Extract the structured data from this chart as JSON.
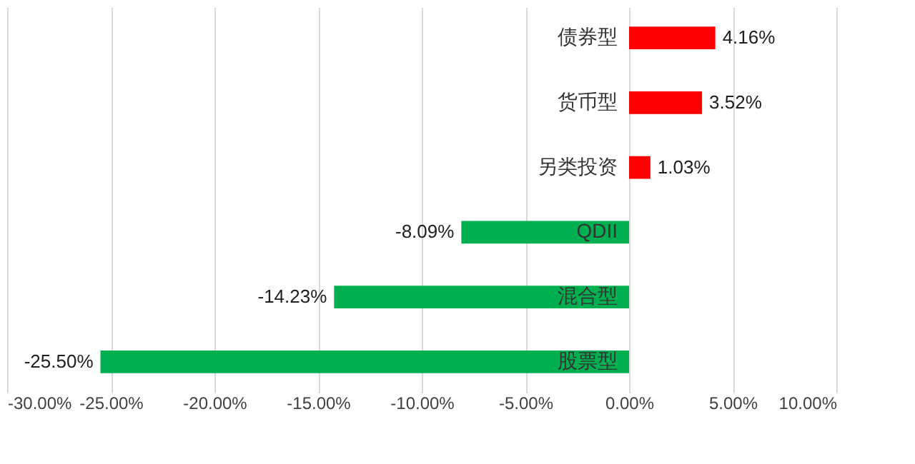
{
  "chart_data": {
    "type": "bar",
    "orientation": "horizontal",
    "categories": [
      "债券型",
      "货币型",
      "另类投资",
      "QDII",
      "混合型",
      "股票型"
    ],
    "values": [
      4.16,
      3.52,
      1.03,
      -8.09,
      -14.23,
      -25.5
    ],
    "colors": [
      "#ff0000",
      "#ff0000",
      "#ff0000",
      "#00b050",
      "#00b050",
      "#00b050"
    ],
    "value_labels": [
      "4.16%",
      "3.52%",
      "1.03%",
      "-8.09%",
      "-14.23%",
      "-25.50%"
    ],
    "xlim": [
      -30,
      10
    ],
    "xticks": [
      {
        "value": -30,
        "label": "-30.00%"
      },
      {
        "value": -25,
        "label": "-25.00%"
      },
      {
        "value": -20,
        "label": "-20.00%"
      },
      {
        "value": -15,
        "label": "-15.00%"
      },
      {
        "value": -10,
        "label": "-10.00%"
      },
      {
        "value": -5,
        "label": "-5.00%"
      },
      {
        "value": 0,
        "label": "0.00%"
      },
      {
        "value": 5,
        "label": "5.00%"
      },
      {
        "value": 10,
        "label": "10.00%"
      }
    ],
    "grid": "x"
  }
}
